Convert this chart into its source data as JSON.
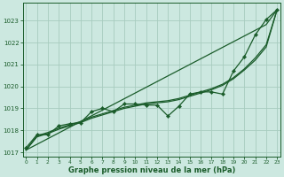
{
  "xlabel": "Graphe pression niveau de la mer (hPa)",
  "background_color": "#cce8e0",
  "grid_color": "#a8ccbf",
  "line_color": "#1a5c2a",
  "hours": [
    0,
    1,
    2,
    3,
    4,
    5,
    6,
    7,
    8,
    9,
    10,
    11,
    12,
    13,
    14,
    15,
    16,
    17,
    18,
    19,
    20,
    21,
    22,
    23
  ],
  "series_main": [
    1017.2,
    1017.8,
    1017.8,
    1018.2,
    1018.3,
    1018.35,
    1018.85,
    1019.0,
    1018.85,
    1019.2,
    1019.2,
    1019.15,
    1019.15,
    1018.65,
    1019.1,
    1019.65,
    1019.75,
    1019.75,
    1019.65,
    1020.7,
    1021.35,
    1022.35,
    1023.05,
    1023.5
  ],
  "series_smooth1": [
    1017.1,
    1017.75,
    1017.9,
    1018.1,
    1018.25,
    1018.4,
    1018.6,
    1018.75,
    1018.9,
    1019.05,
    1019.15,
    1019.25,
    1019.3,
    1019.35,
    1019.45,
    1019.6,
    1019.75,
    1019.9,
    1020.1,
    1020.4,
    1020.8,
    1021.3,
    1021.9,
    1023.5
  ],
  "series_smooth2": [
    1017.1,
    1017.7,
    1017.85,
    1018.05,
    1018.2,
    1018.35,
    1018.55,
    1018.7,
    1018.85,
    1019.0,
    1019.1,
    1019.2,
    1019.25,
    1019.3,
    1019.4,
    1019.55,
    1019.7,
    1019.85,
    1020.05,
    1020.35,
    1020.75,
    1021.2,
    1021.8,
    1023.5
  ],
  "series_straight": [
    1017.1,
    1017.36,
    1017.62,
    1017.88,
    1018.14,
    1018.4,
    1018.66,
    1018.92,
    1019.18,
    1019.44,
    1019.7,
    1019.96,
    1020.22,
    1020.48,
    1020.74,
    1021.0,
    1021.26,
    1021.52,
    1021.78,
    1022.04,
    1022.3,
    1022.56,
    1022.82,
    1023.5
  ],
  "ylim": [
    1016.8,
    1023.8
  ],
  "yticks": [
    1017,
    1018,
    1019,
    1020,
    1021,
    1022,
    1023
  ],
  "xlim": [
    -0.3,
    23.3
  ],
  "xticks": [
    0,
    1,
    2,
    3,
    4,
    5,
    6,
    7,
    8,
    9,
    10,
    11,
    12,
    13,
    14,
    15,
    16,
    17,
    18,
    19,
    20,
    21,
    22,
    23
  ]
}
